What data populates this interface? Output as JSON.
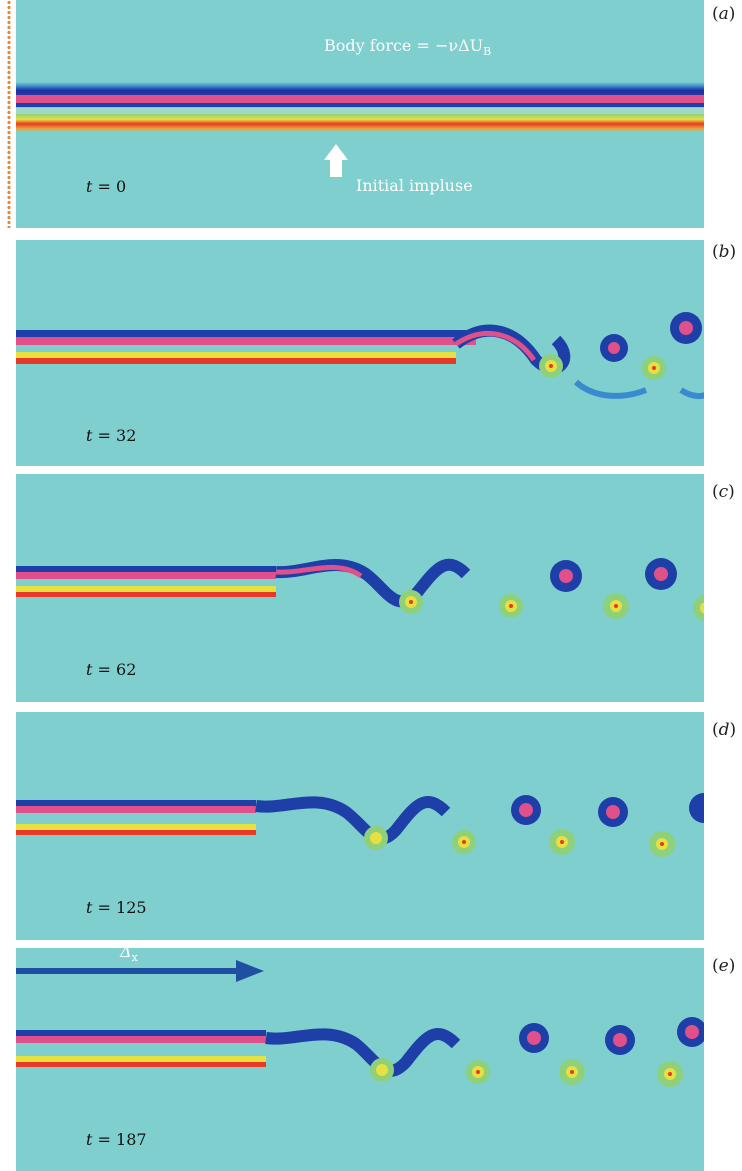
{
  "panels": [
    {
      "label": "a",
      "time_label": "t = 0",
      "t": "t",
      "tval": " = 0"
    },
    {
      "label": "b",
      "time_label": "t = 32",
      "t": "t",
      "tval": " = 32"
    },
    {
      "label": "c",
      "time_label": "t = 62",
      "t": "t",
      "tval": " = 62"
    },
    {
      "label": "d",
      "time_label": "t = 125",
      "t": "t",
      "tval": " = 125"
    },
    {
      "label": "e",
      "time_label": "t = 187",
      "t": "t",
      "tval": " = 187"
    }
  ],
  "annotations": {
    "body_force": "Body force = −νΔU",
    "body_force_sub": "B",
    "initial_impulse": "Initial impluse",
    "delta": "Δ",
    "delta_sub": "x"
  },
  "colors": {
    "background": "#7fcfcf",
    "blue_band": "#1e3ea8",
    "pink_band": "#e0508a",
    "red_band": "#e83828",
    "yellow_band": "#f0e040",
    "arrow": "#1f4fa0"
  }
}
